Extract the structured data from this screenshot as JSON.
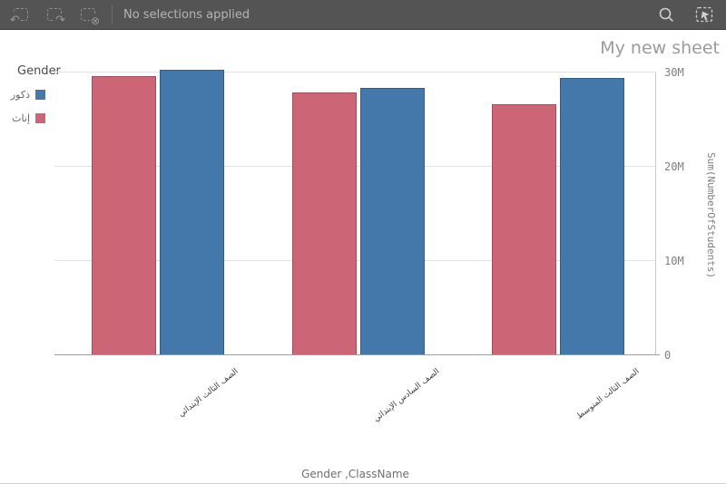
{
  "toolbar": {
    "status_text": "No selections applied",
    "icons": [
      "undo-icon",
      "redo-icon",
      "clear-selections-icon",
      "search-icon",
      "selections-tool-icon"
    ]
  },
  "sheet": {
    "title": "My new sheet"
  },
  "chart_data": {
    "type": "bar",
    "orientation": "vertical",
    "categories": [
      "الصف الثالث الإبتدائي",
      "الصف السادس الإبتدائي",
      "الصف الثالث المتوسط"
    ],
    "series": [
      {
        "name": "إناث",
        "color": "#cc6677",
        "values": [
          29.6,
          27.9,
          26.6
        ]
      },
      {
        "name": "ذكور",
        "color": "#4477aa",
        "values": [
          30.3,
          28.4,
          29.4
        ]
      }
    ],
    "value_unit": "M",
    "xlabel": "Gender ,ClassName",
    "ylabel": "Sum(NumberOfStudents)",
    "yticks": [
      0,
      10,
      20,
      30
    ],
    "ytick_labels": [
      "0",
      "10M",
      "20M",
      "30M"
    ],
    "ylim": [
      0,
      32
    ],
    "grid": true,
    "legend": {
      "title": "Gender",
      "position": "top-left",
      "items": [
        {
          "label": "ذكور",
          "color": "#4477aa"
        },
        {
          "label": "إناث",
          "color": "#cc6677"
        }
      ]
    }
  }
}
